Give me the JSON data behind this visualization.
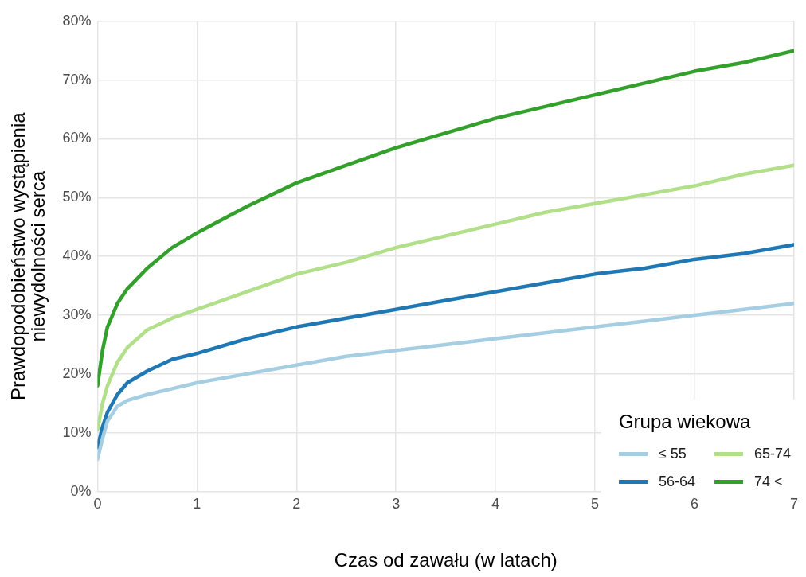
{
  "chart_data": {
    "type": "line",
    "xlabel": "Czas od zawału (w latach)",
    "ylabel": "Prawdopodobieństwo wystąpienia\nniewydolności serca",
    "legend_title": "Grupa wiekowa",
    "legend": "bottom right",
    "grid": true,
    "marker": "none",
    "line_style": "solid",
    "x": [
      0,
      0.05,
      0.1,
      0.2,
      0.3,
      0.5,
      0.75,
      1,
      1.5,
      2,
      2.5,
      3,
      3.5,
      4,
      4.5,
      5,
      5.5,
      6,
      6.5,
      7
    ],
    "xlim": [
      0,
      7
    ],
    "xticks": [
      0,
      1,
      2,
      3,
      4,
      5,
      6,
      7
    ],
    "ylim": [
      0,
      80
    ],
    "yticks": [
      {
        "value": 0,
        "label": "0%"
      },
      {
        "value": 10,
        "label": "10%"
      },
      {
        "value": 20,
        "label": "20%"
      },
      {
        "value": 30,
        "label": "30%"
      },
      {
        "value": 40,
        "label": "40%"
      },
      {
        "value": 50,
        "label": "50%"
      },
      {
        "value": 60,
        "label": "60%"
      },
      {
        "value": 70,
        "label": "70%"
      },
      {
        "value": 80,
        "label": "80%"
      }
    ],
    "series": [
      {
        "name": "≤ 55",
        "color": "#a6cee3",
        "values": [
          5.5,
          9,
          12,
          14.5,
          15.5,
          16.5,
          17.5,
          18.5,
          20,
          21.5,
          23,
          24,
          25,
          26,
          27,
          28,
          29,
          30,
          31,
          32
        ]
      },
      {
        "name": "56-64",
        "color": "#1f78b4",
        "values": [
          7.5,
          11,
          13.5,
          16.5,
          18.5,
          20.5,
          22.5,
          23.5,
          26,
          28,
          29.5,
          31,
          32.5,
          34,
          35.5,
          37,
          38,
          39.5,
          40.5,
          42
        ]
      },
      {
        "name": "65-74",
        "color": "#b2df8a",
        "values": [
          10.5,
          15,
          18,
          22,
          24.5,
          27.5,
          29.5,
          31,
          34,
          37,
          39,
          41.5,
          43.5,
          45.5,
          47.5,
          49,
          50.5,
          52,
          54,
          55.5
        ]
      },
      {
        "name": "74 <",
        "color": "#33a02c",
        "values": [
          18,
          24,
          28,
          32,
          34.5,
          38,
          41.5,
          44,
          48.5,
          52.5,
          55.5,
          58.5,
          61,
          63.5,
          65.5,
          67.5,
          69.5,
          71.5,
          73,
          75
        ]
      }
    ]
  }
}
